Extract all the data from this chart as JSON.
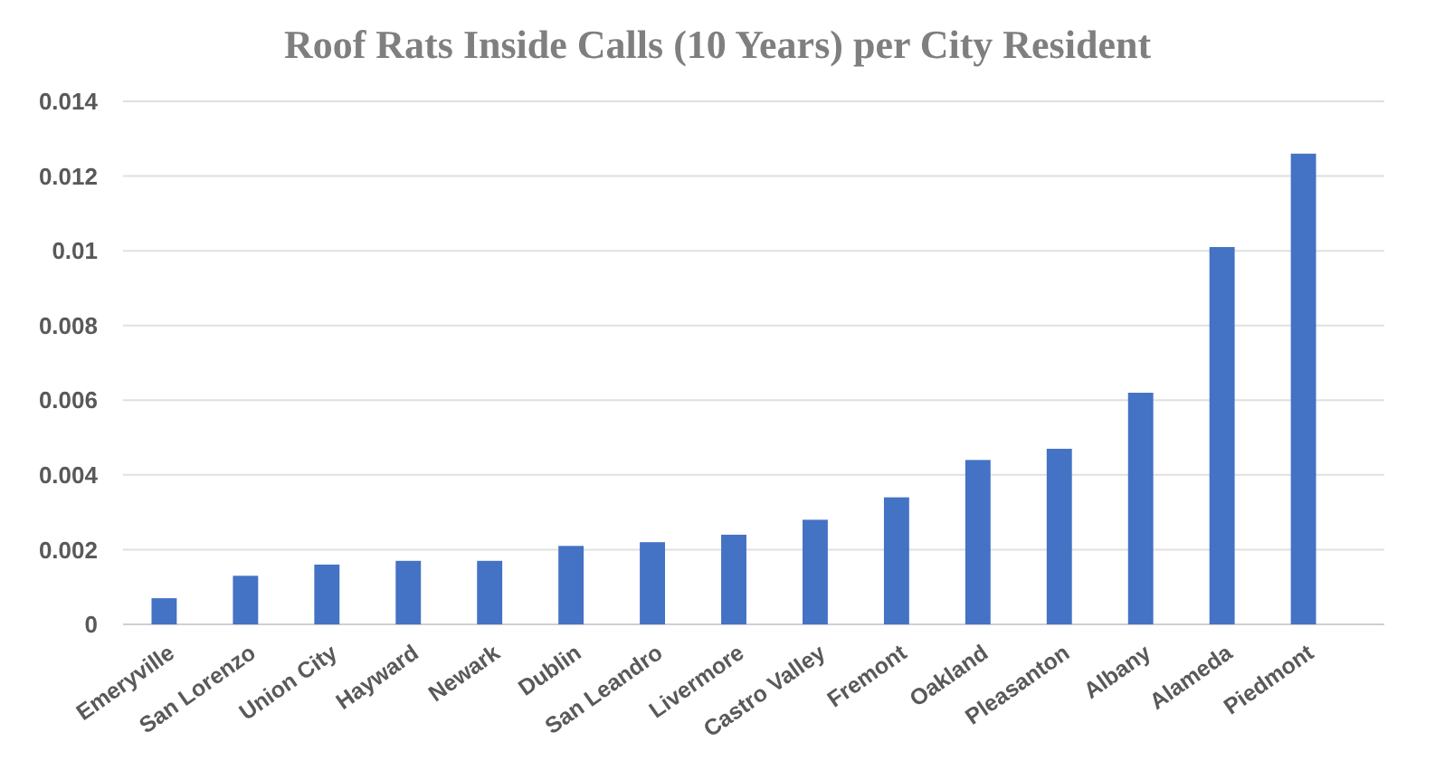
{
  "chart_data": {
    "type": "bar",
    "title": "Roof Rats Inside Calls (10 Years) per City Resident",
    "categories": [
      "Emeryville",
      "San Lorenzo",
      "Union City",
      "Hayward",
      "Newark",
      "Dublin",
      "San Leandro",
      "Livermore",
      "Castro Valley",
      "Fremont",
      "Oakland",
      "Pleasanton",
      "Albany",
      "Alameda",
      "Piedmont"
    ],
    "values": [
      0.0007,
      0.0013,
      0.0016,
      0.0017,
      0.0017,
      0.0021,
      0.0022,
      0.0024,
      0.0028,
      0.0034,
      0.0044,
      0.0047,
      0.0062,
      0.0101,
      0.0126
    ],
    "color": "#4472c4",
    "ylim": [
      0,
      0.014
    ],
    "yticks": [
      0,
      0.002,
      0.004,
      0.006,
      0.008,
      0.01,
      0.012,
      0.014
    ],
    "grid": true
  }
}
